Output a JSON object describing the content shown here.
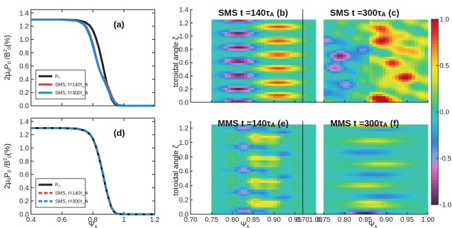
{
  "figure": {
    "background": "#ffffff"
  },
  "chart_data": [
    {
      "id": "a",
      "type": "line",
      "panel_label": "(a)",
      "xlabel": "Ψ_n",
      "ylabel": "2μ₀P₀/B₀²(%)",
      "xlim": [
        0.4,
        1.2
      ],
      "ylim": [
        0.0,
        1.45
      ],
      "xticks": [
        "0.4",
        "0.6",
        "0.8",
        "1",
        "1.2"
      ],
      "yticks": [
        "0.0",
        "0.2",
        "0.4",
        "0.6",
        "0.8",
        "1.0",
        "1.2",
        "1.4"
      ],
      "grid": false,
      "legend_position": "bottom-left",
      "series": [
        {
          "name": "P₀",
          "color": "#222222",
          "style": "solid",
          "x": [
            0.4,
            0.6,
            0.7,
            0.75,
            0.78,
            0.8,
            0.82,
            0.84,
            0.86,
            0.88,
            0.9,
            0.92,
            0.94,
            0.96,
            1.0,
            1.2
          ],
          "y": [
            1.3,
            1.3,
            1.29,
            1.26,
            1.21,
            1.14,
            1.02,
            0.86,
            0.66,
            0.44,
            0.25,
            0.1,
            0.03,
            0.005,
            0.0,
            0.0
          ]
        },
        {
          "name": "SMS, t=140τ_A",
          "color": "#e03a3a",
          "style": "solid",
          "x": [
            0.4,
            0.6,
            0.7,
            0.74,
            0.76,
            0.78,
            0.8,
            0.82,
            0.84,
            0.86,
            0.88,
            0.9,
            0.92,
            0.94,
            0.96,
            0.98,
            1.0,
            1.2
          ],
          "y": [
            1.3,
            1.3,
            1.28,
            1.24,
            1.18,
            1.08,
            0.93,
            0.74,
            0.56,
            0.45,
            0.38,
            0.28,
            0.15,
            0.06,
            0.02,
            0.005,
            0.0,
            0.0
          ]
        },
        {
          "name": "SMS, t=300τ_A",
          "color": "#1e88d6",
          "style": "solid",
          "x": [
            0.4,
            0.6,
            0.7,
            0.74,
            0.76,
            0.78,
            0.8,
            0.82,
            0.84,
            0.86,
            0.88,
            0.9,
            0.92,
            0.94,
            0.96,
            0.98,
            1.0,
            1.2
          ],
          "y": [
            1.3,
            1.3,
            1.28,
            1.23,
            1.16,
            1.05,
            0.9,
            0.72,
            0.56,
            0.44,
            0.34,
            0.23,
            0.12,
            0.05,
            0.015,
            0.0,
            0.0,
            0.0
          ]
        }
      ]
    },
    {
      "id": "d",
      "type": "line",
      "panel_label": "(d)",
      "xlabel": "Ψ_n",
      "ylabel": "2μ₀P₀/B₀²(%)",
      "xlim": [
        0.4,
        1.2
      ],
      "ylim": [
        0.0,
        1.45
      ],
      "xticks": [
        "0.4",
        "0.6",
        "0.8",
        "1",
        "1.2"
      ],
      "yticks": [
        "0.0",
        "0.2",
        "0.4",
        "0.6",
        "0.8",
        "1.0",
        "1.2",
        "1.4"
      ],
      "grid": false,
      "legend_position": "bottom-left",
      "series": [
        {
          "name": "P₀",
          "color": "#222222",
          "style": "solid",
          "x": [
            0.4,
            0.6,
            0.7,
            0.75,
            0.78,
            0.8,
            0.82,
            0.84,
            0.86,
            0.88,
            0.9,
            0.92,
            0.94,
            0.96,
            1.0,
            1.2
          ],
          "y": [
            1.3,
            1.3,
            1.29,
            1.26,
            1.21,
            1.14,
            1.02,
            0.86,
            0.66,
            0.44,
            0.25,
            0.1,
            0.03,
            0.005,
            0.0,
            0.0
          ]
        },
        {
          "name": "SMS, t=140τ_A",
          "color": "#e03a3a",
          "style": "dashed",
          "x": [
            0.4,
            0.6,
            0.7,
            0.75,
            0.78,
            0.8,
            0.82,
            0.84,
            0.86,
            0.88,
            0.9,
            0.92,
            0.94,
            0.96,
            1.0,
            1.2
          ],
          "y": [
            1.3,
            1.3,
            1.29,
            1.26,
            1.21,
            1.14,
            1.02,
            0.86,
            0.66,
            0.44,
            0.25,
            0.1,
            0.03,
            0.005,
            0.0,
            0.0
          ]
        },
        {
          "name": "SMS, t=300τ_A",
          "color": "#1e88d6",
          "style": "dashed",
          "x": [
            0.4,
            0.6,
            0.7,
            0.75,
            0.78,
            0.8,
            0.82,
            0.84,
            0.86,
            0.88,
            0.9,
            0.92,
            0.94,
            0.96,
            1.0,
            1.2
          ],
          "y": [
            1.3,
            1.3,
            1.29,
            1.26,
            1.21,
            1.14,
            1.02,
            0.86,
            0.66,
            0.44,
            0.25,
            0.1,
            0.03,
            0.005,
            0.0,
            0.0
          ]
        }
      ]
    },
    {
      "id": "b",
      "type": "heatmap",
      "title": "SMS t =140τ_A (b)",
      "xlabel": "Ψ_n",
      "ylabel": "toroidal angle ζ",
      "xlim": [
        0.7,
        1.0
      ],
      "ylim": [
        0.0,
        1.4
      ],
      "xticks": [
        "0.70",
        "0.75",
        "0.80",
        "0.85",
        "0.90",
        "0.95",
        "1.00"
      ],
      "yticks": [
        "0.0",
        "0.2",
        "0.4",
        "0.6",
        "0.8",
        "1.0",
        "1.2",
        "1.4"
      ],
      "data_extent": {
        "x": [
          0.75,
          1.0
        ],
        "y": [
          0.0,
          1.25
        ]
      },
      "pattern": {
        "kind": "alternating_rows",
        "rows": [
          0.0,
          0.2,
          0.41,
          0.62,
          0.83,
          1.04,
          1.25
        ],
        "negative_x": [
          0.78,
          0.85
        ],
        "positive_x": [
          0.87,
          0.95
        ]
      }
    },
    {
      "id": "c",
      "type": "heatmap",
      "title": "SMS t =300τ_A (c)",
      "xlabel": "Ψ_n",
      "ylabel": "",
      "xlim": [
        0.7,
        1.0
      ],
      "ylim": [
        0.0,
        1.4
      ],
      "xticks": [
        "0.70",
        "0.75",
        "0.80",
        "0.85",
        "0.90",
        "0.95",
        "1.00"
      ],
      "yticks": [],
      "data_extent": {
        "x": [
          0.75,
          1.0
        ],
        "y": [
          0.0,
          1.25
        ]
      },
      "pattern": {
        "kind": "turbulent",
        "blobs": [
          {
            "x": 0.9,
            "y": 0.95,
            "v": 0.9
          },
          {
            "x": 0.94,
            "y": 0.37,
            "v": 0.85
          },
          {
            "x": 0.89,
            "y": 0.05,
            "v": 0.8
          },
          {
            "x": 0.92,
            "y": 0.6,
            "v": 0.6
          },
          {
            "x": 0.88,
            "y": 1.12,
            "v": 0.5
          },
          {
            "x": 0.96,
            "y": 0.8,
            "v": 0.45
          },
          {
            "x": 0.79,
            "y": 0.7,
            "v": -0.8
          },
          {
            "x": 0.78,
            "y": 0.52,
            "v": -0.6
          },
          {
            "x": 0.76,
            "y": 0.92,
            "v": -0.5
          },
          {
            "x": 0.8,
            "y": 0.28,
            "v": -0.45
          },
          {
            "x": 0.84,
            "y": 0.78,
            "v": -0.4
          },
          {
            "x": 0.77,
            "y": 0.15,
            "v": -0.35
          }
        ]
      }
    },
    {
      "id": "e",
      "type": "heatmap",
      "title": "MMS t =140τ_A (e)",
      "xlabel": "Ψ_n",
      "ylabel": "toroidal angle ζ",
      "xlim": [
        0.7,
        1.0
      ],
      "ylim": [
        0.0,
        1.3
      ],
      "xticks": [
        "0.70",
        "0.75",
        "0.80",
        "0.85",
        "0.90",
        "0.95",
        "1.00"
      ],
      "yticks": [
        "0.0",
        "0.2",
        "0.4",
        "0.6",
        "0.8",
        "1.0",
        "1.2"
      ],
      "data_extent": {
        "x": [
          0.75,
          1.0
        ],
        "y": [
          0.0,
          1.25
        ]
      },
      "pattern": {
        "kind": "zigzag",
        "rows": [
          0.05,
          0.17,
          0.31,
          0.46,
          0.62,
          0.78,
          0.94,
          1.08,
          1.2
        ],
        "center_x": 0.855
      }
    },
    {
      "id": "f",
      "type": "heatmap",
      "title": "MMS t =300τ_A (f)",
      "xlabel": "Ψ_n",
      "ylabel": "",
      "xlim": [
        0.7,
        1.0
      ],
      "ylim": [
        0.0,
        1.3
      ],
      "xticks": [
        "0.70",
        "0.75",
        "0.80",
        "0.85",
        "0.90",
        "0.95",
        "1.00"
      ],
      "yticks": [],
      "data_extent": {
        "x": [
          0.75,
          1.0
        ],
        "y": [
          0.0,
          1.25
        ]
      },
      "pattern": {
        "kind": "bands",
        "rows": [
          0.0,
          0.12,
          0.25,
          0.4,
          0.55,
          0.7,
          0.86,
          1.02,
          1.2
        ],
        "center_x": 0.87
      }
    }
  ],
  "colorbar": {
    "ticks": [
      "1.0",
      "0.5",
      "0.0",
      "-0.5",
      "-1.0"
    ],
    "range": [
      -1.0,
      1.0
    ],
    "colors": [
      "#3a2f3d",
      "#7a3b7c",
      "#c04e9a",
      "#d87bcf",
      "#77a5e0",
      "#3f7fd2",
      "#2fa8d8",
      "#3bc2c4",
      "#44c28a",
      "#7bd04e",
      "#c8e03a",
      "#f4e32c",
      "#f6b22c",
      "#ef6a2a",
      "#df2a2a",
      "#b71522"
    ]
  }
}
